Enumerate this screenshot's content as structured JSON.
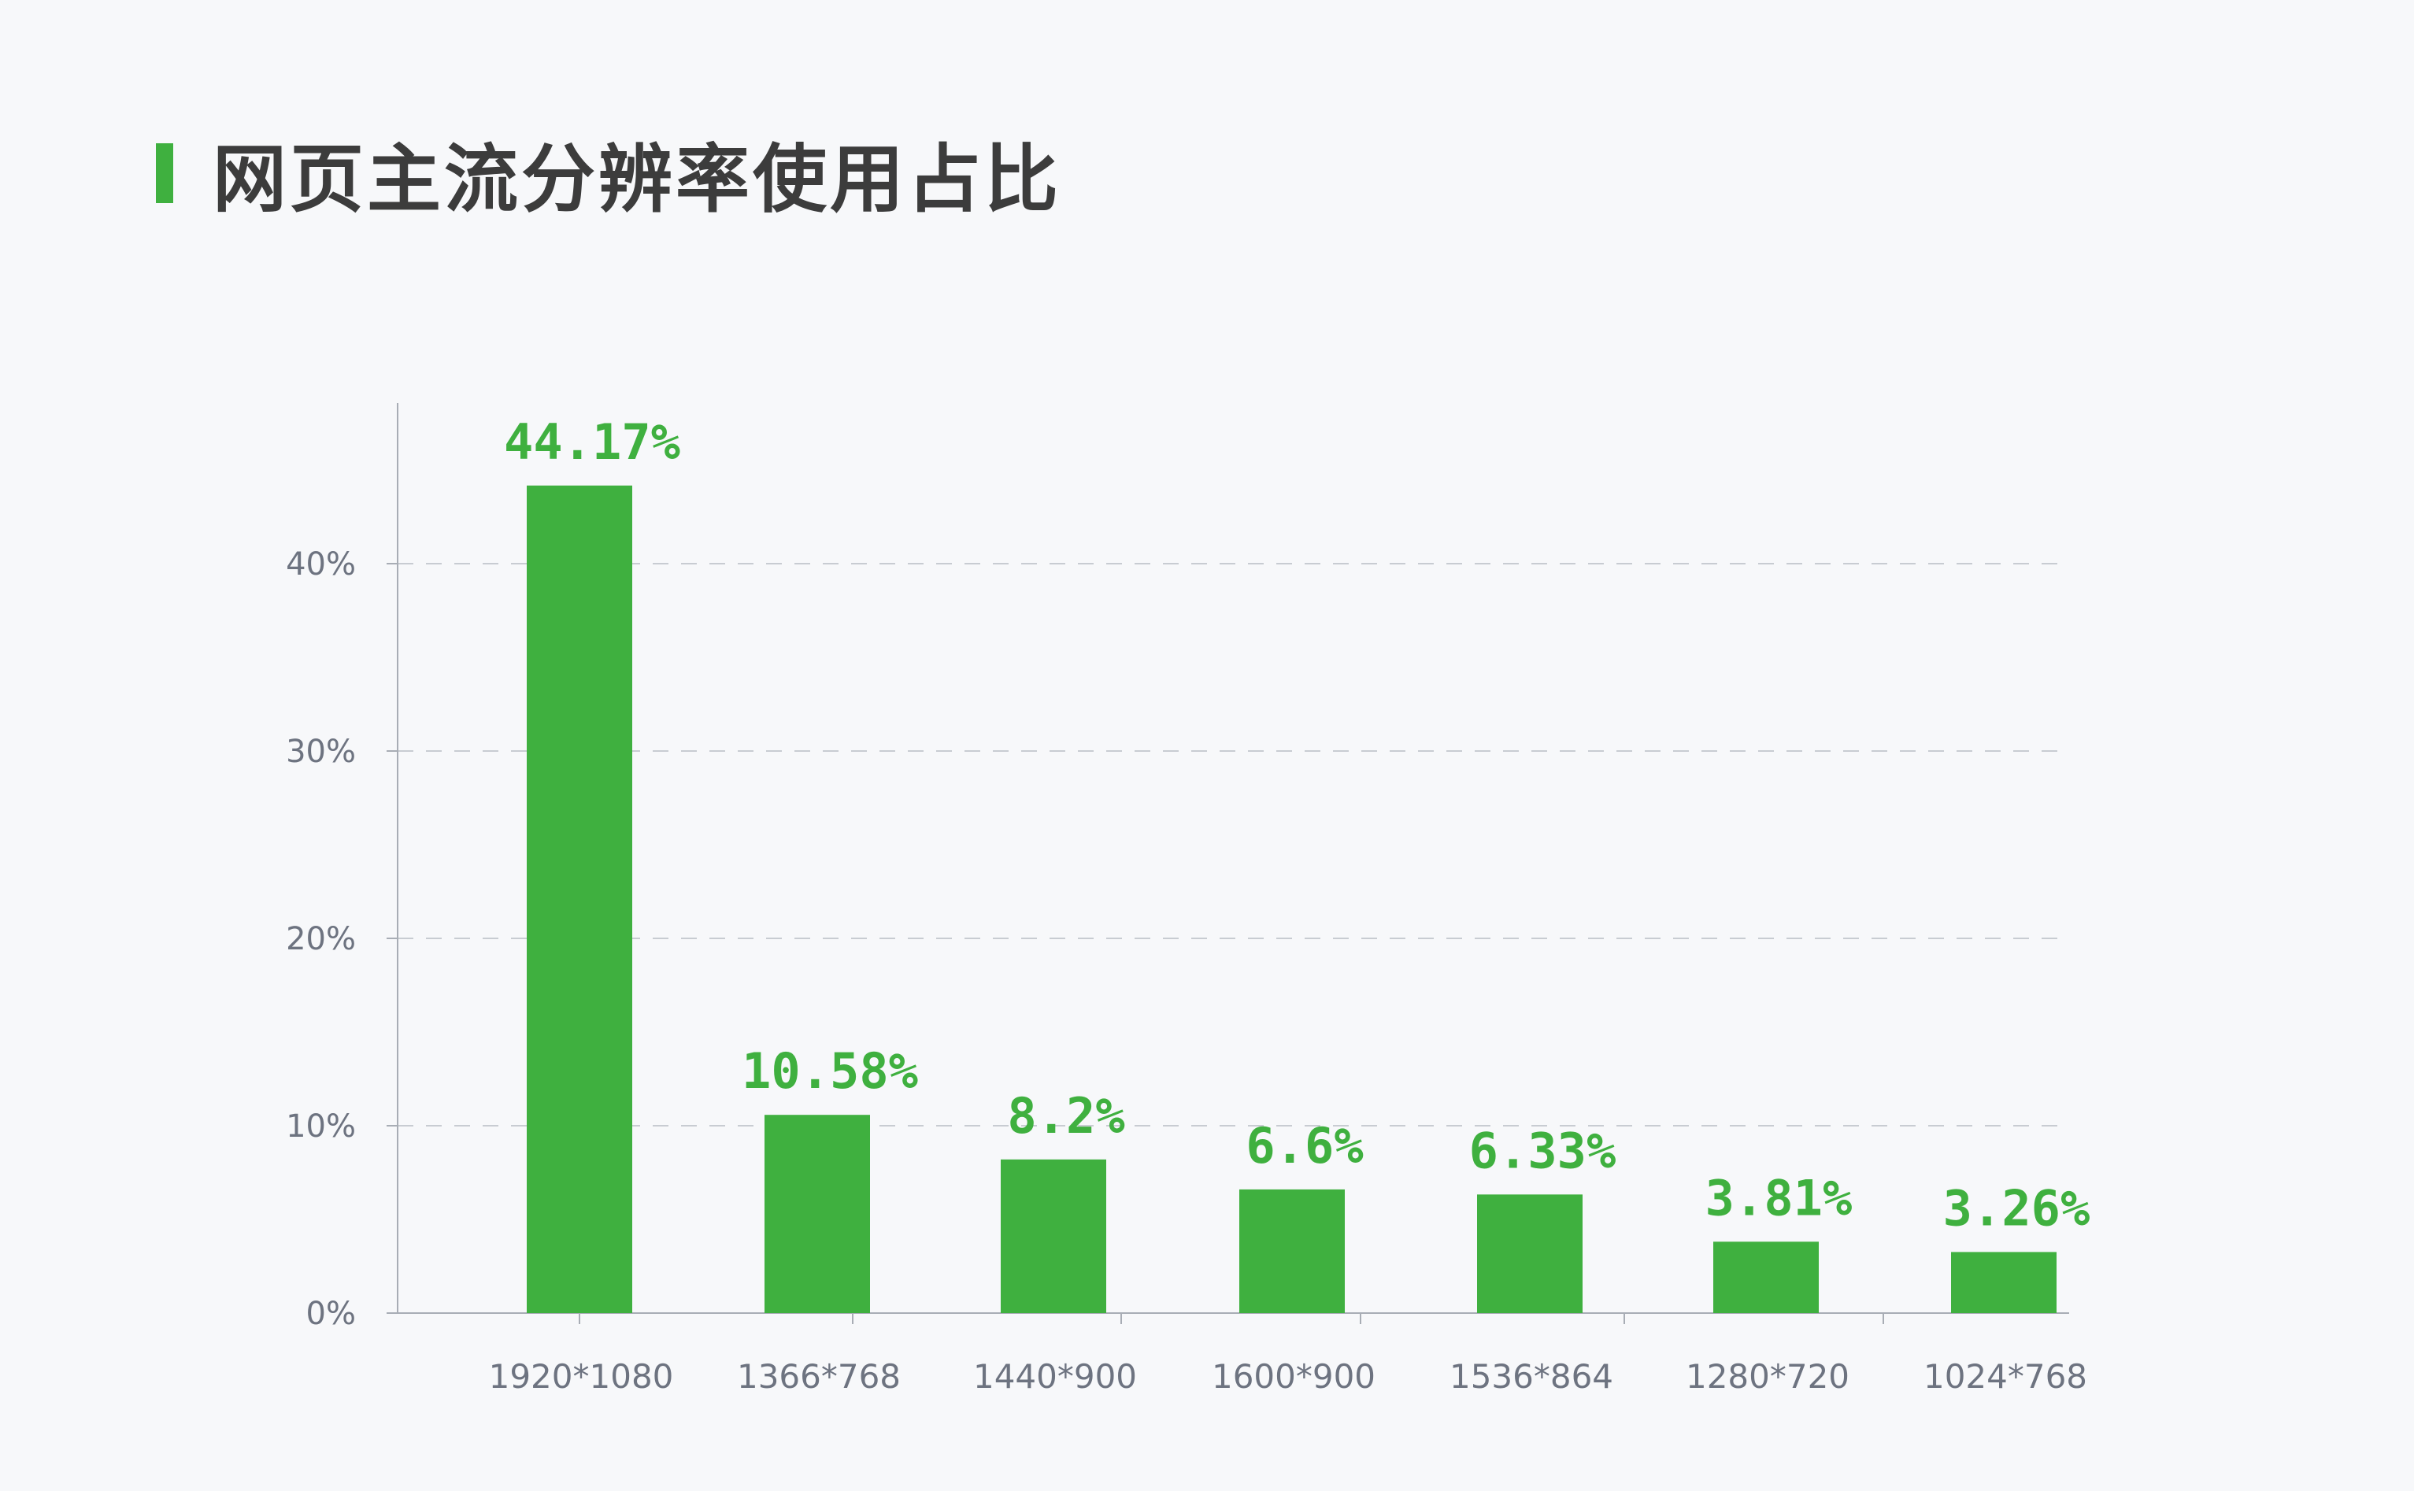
{
  "title": "网页主流分辨率使用占比",
  "colors": {
    "accent": "#3fb03f",
    "background": "#f7f8fa",
    "title_text": "#3c3c3c",
    "axis_text": "#6d7380",
    "grid": "#c8ccd2",
    "axis_line": "#a8adb5"
  },
  "chart_data": {
    "type": "bar",
    "title": "网页主流分辨率使用占比",
    "xlabel": "",
    "ylabel": "",
    "categories": [
      "1920*1080",
      "1366*768",
      "1440*900",
      "1600*900",
      "1536*864",
      "1280*720",
      "1024*768"
    ],
    "values": [
      44.17,
      10.58,
      8.2,
      6.6,
      6.33,
      3.81,
      3.26
    ],
    "value_labels": [
      "44.17%",
      "10.58%",
      "8.2%",
      "6.6%",
      "6.33%",
      "3.81%",
      "3.26%"
    ],
    "y_ticks": [
      0,
      10,
      20,
      30,
      40
    ],
    "y_tick_labels": [
      "0%",
      "10%",
      "20%",
      "30%",
      "40%"
    ],
    "ylim": [
      0,
      45
    ],
    "grid": true,
    "legend": "none"
  }
}
